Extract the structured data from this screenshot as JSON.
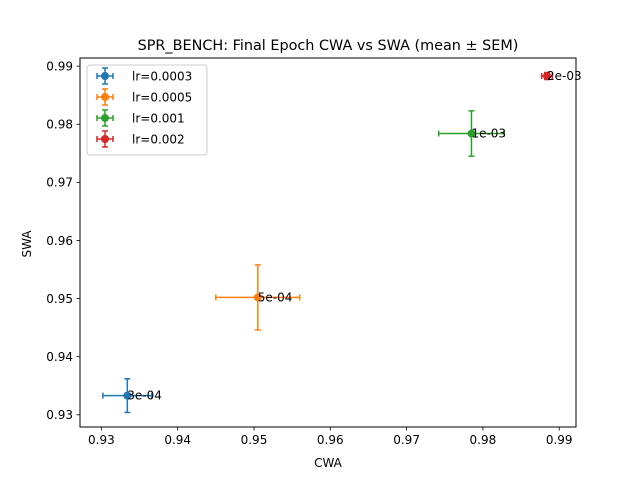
{
  "chart_data": {
    "type": "scatter",
    "title": "SPR_BENCH: Final Epoch CWA vs SWA (mean ± SEM)",
    "xlabel": "CWA",
    "ylabel": "SWA",
    "xlim": [
      0.9272,
      0.9922
    ],
    "ylim": [
      0.9279,
      0.9914
    ],
    "xticks": [
      0.93,
      0.94,
      0.95,
      0.96,
      0.97,
      0.98,
      0.99
    ],
    "yticks": [
      0.93,
      0.94,
      0.95,
      0.96,
      0.97,
      0.98,
      0.99
    ],
    "grid": false,
    "legend_position": "upper left",
    "series": [
      {
        "name": "lr=0.0003",
        "color": "#1f77b4",
        "marker": "circle",
        "x": 0.9334,
        "y": 0.9333,
        "xerr": 0.0032,
        "yerr": 0.0029,
        "annotation": "3e-04"
      },
      {
        "name": "lr=0.0005",
        "color": "#ff7f0e",
        "marker": "circle",
        "x": 0.9505,
        "y": 0.9502,
        "xerr": 0.0055,
        "yerr": 0.0056,
        "annotation": "5e-04"
      },
      {
        "name": "lr=0.001",
        "color": "#2ca02c",
        "marker": "circle",
        "x": 0.9785,
        "y": 0.9784,
        "xerr": 0.0043,
        "yerr": 0.0039,
        "annotation": "1e-03"
      },
      {
        "name": "lr=0.002",
        "color": "#d62728",
        "marker": "circle",
        "x": 0.9884,
        "y": 0.9883,
        "xerr": 0.0007,
        "yerr": 0.0006,
        "annotation": "2e-03"
      }
    ]
  }
}
